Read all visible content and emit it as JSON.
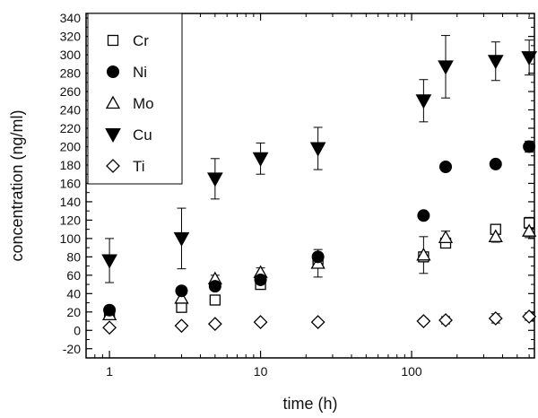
{
  "chart_data": {
    "type": "scatter",
    "xlabel": "time (h)",
    "ylabel": "concentration (ng/ml)",
    "xscale": "log",
    "xlim": [
      0.7,
      650
    ],
    "ylim": [
      -30,
      345
    ],
    "x_ticks": [
      1,
      10,
      100
    ],
    "x_tick_labels": [
      "1",
      "10",
      "100"
    ],
    "y_ticks": [
      -20,
      0,
      20,
      40,
      60,
      80,
      100,
      120,
      140,
      160,
      180,
      200,
      220,
      240,
      260,
      280,
      300,
      320,
      340
    ],
    "y_tick_labels": [
      "-20",
      "0",
      "20",
      "40",
      "60",
      "80",
      "100",
      "120",
      "140",
      "160",
      "180",
      "200",
      "220",
      "240",
      "260",
      "280",
      "300",
      "320",
      "340"
    ],
    "grid": false,
    "legend_position": "top-left",
    "series": [
      {
        "name": "Cr",
        "marker": "open-square",
        "x": [
          1,
          3,
          5,
          10,
          24,
          120,
          168,
          360,
          600
        ],
        "y": [
          18,
          25,
          33,
          50,
          77,
          80,
          95,
          110,
          117
        ],
        "err": [
          3,
          4,
          3,
          4,
          4,
          5,
          5,
          5,
          6
        ]
      },
      {
        "name": "Ni",
        "marker": "filled-circle",
        "x": [
          1,
          3,
          5,
          10,
          24,
          120,
          168,
          360,
          600
        ],
        "y": [
          22,
          43,
          48,
          55,
          80,
          125,
          178,
          181,
          200
        ],
        "err": [
          3,
          3,
          3,
          3,
          3,
          4,
          4,
          4,
          6
        ]
      },
      {
        "name": "Mo",
        "marker": "open-triangle-up",
        "x": [
          1,
          3,
          5,
          10,
          24,
          120,
          168,
          360,
          600
        ],
        "y": [
          17,
          35,
          56,
          63,
          73,
          82,
          101,
          102,
          108
        ],
        "err": [
          3,
          4,
          4,
          5,
          15,
          20,
          7,
          6,
          7
        ]
      },
      {
        "name": "Cu",
        "marker": "filled-triangle-down",
        "x": [
          1,
          3,
          5,
          10,
          24,
          120,
          168,
          360,
          600
        ],
        "y": [
          76,
          100,
          165,
          187,
          198,
          250,
          287,
          293,
          297
        ],
        "err": [
          24,
          33,
          22,
          17,
          23,
          23,
          34,
          21,
          19
        ]
      },
      {
        "name": "Ti",
        "marker": "open-diamond",
        "x": [
          1,
          3,
          5,
          10,
          24,
          120,
          168,
          360,
          600
        ],
        "y": [
          3,
          5,
          7,
          9,
          9,
          10,
          11,
          13,
          15
        ],
        "err": [
          2,
          2,
          2,
          2,
          2,
          3,
          4,
          5,
          4
        ]
      }
    ]
  }
}
